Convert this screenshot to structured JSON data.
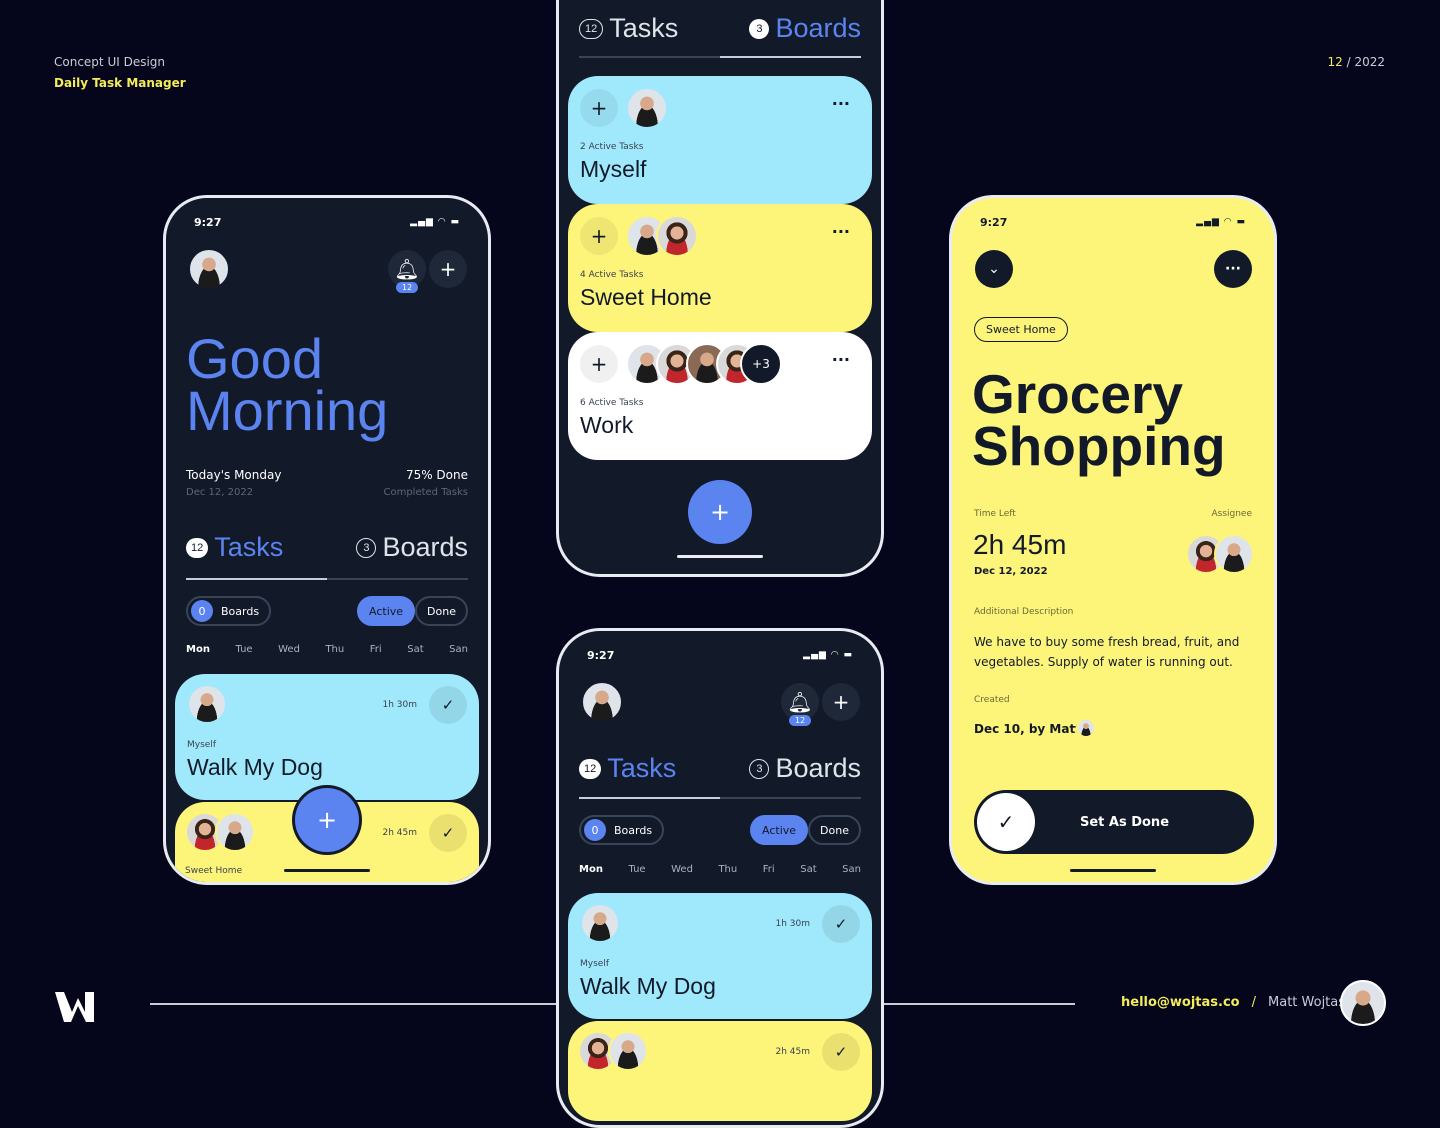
{
  "header": {
    "concept": "Concept UI Design",
    "title": "Daily Task Manager",
    "date_month": "12",
    "date_year": " / 2022"
  },
  "colors": {
    "bg": "#05061c",
    "phone": "#121a2a",
    "blue": "#5b84f0",
    "cyan": "#a0e9fc",
    "yellow": "#fdf47a"
  },
  "phone1": {
    "time": "9:27",
    "notif_count": "12",
    "greeting_1": "Good",
    "greeting_2": "Morning",
    "today": "Today's Monday",
    "date": "Dec 12, 2022",
    "progress": "75% Done",
    "progress_label": "Completed Tasks",
    "progress_value": 75,
    "tasks_count": "12",
    "tasks_label": "Tasks",
    "boards_count": "3",
    "boards_label": "Boards",
    "filter_count": "0",
    "filter_boards": "Boards",
    "filter_active": "Active",
    "filter_done": "Done",
    "days": [
      "Mon",
      "Tue",
      "Wed",
      "Thu",
      "Fri",
      "Sat",
      "San"
    ],
    "task1": {
      "time": "1h 30m",
      "board": "Myself",
      "title": "Walk My Dog"
    },
    "task2": {
      "time": "2h 45m",
      "board": "Sweet Home"
    }
  },
  "phone2": {
    "tasks_count": "12",
    "tasks_label": "Tasks",
    "boards_count": "3",
    "boards_label": "Boards",
    "boards": [
      {
        "count": "2 Active Tasks",
        "name": "Myself"
      },
      {
        "count": "4 Active Tasks",
        "name": "Sweet Home"
      },
      {
        "count": "6 Active Tasks",
        "name": "Work",
        "more": "+3"
      }
    ]
  },
  "phone3": {
    "time": "9:27",
    "notif_count": "12",
    "tasks_count": "12",
    "tasks_label": "Tasks",
    "boards_count": "3",
    "boards_label": "Boards",
    "filter_count": "0",
    "filter_boards": "Boards",
    "filter_active": "Active",
    "filter_done": "Done",
    "days": [
      "Mon",
      "Tue",
      "Wed",
      "Thu",
      "Fri",
      "Sat",
      "San"
    ],
    "task1": {
      "time": "1h 30m",
      "board": "Myself",
      "title": "Walk My Dog"
    },
    "task2": {
      "time": "2h 45m"
    }
  },
  "phone4": {
    "time": "9:27",
    "tag": "Sweet Home",
    "title_1": "Grocery",
    "title_2": "Shopping",
    "time_left_label": "Time Left",
    "time_left": "2h 45m",
    "date": "Dec 12, 2022",
    "assignee_label": "Assignee",
    "desc_label": "Additional Description",
    "desc": "We have to buy some fresh bread, fruit, and vegetables. Supply of water is running out.",
    "created_label": "Created",
    "created": "Dec 10, by Matt",
    "button": "Set As Done"
  },
  "footer": {
    "email": "hello@wojtas.co",
    "sep": "/",
    "name": "Matt Wojtaś"
  }
}
